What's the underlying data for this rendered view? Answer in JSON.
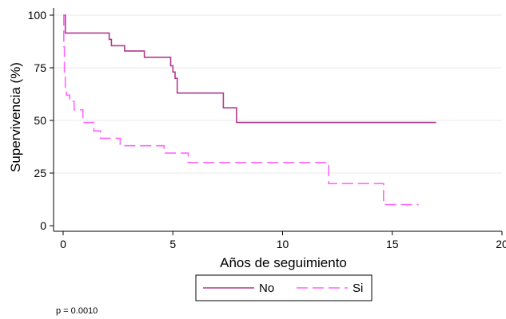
{
  "chart_data": {
    "type": "line",
    "step": true,
    "xlabel": "Años de seguimiento",
    "ylabel": "Supervivencia (%)",
    "xlim": [
      0,
      20
    ],
    "ylim": [
      0,
      100
    ],
    "xticks": [
      0,
      5,
      10,
      15,
      20
    ],
    "xtick_labels": [
      "0",
      "5",
      "10",
      "15",
      "20"
    ],
    "yticks": [
      0,
      25,
      50,
      75,
      100
    ],
    "ytick_labels": [
      "0",
      "25",
      "50",
      "75",
      "100"
    ],
    "grid": "horizontal",
    "legend": "bottom",
    "series": [
      {
        "name": "No",
        "color": "#b03a8c",
        "dash": "solid",
        "x": [
          0,
          0.1,
          2.1,
          2.2,
          2.8,
          3.7,
          4.9,
          5.0,
          5.1,
          5.2,
          7.3,
          7.9,
          17.0
        ],
        "y": [
          100,
          91.5,
          88.5,
          85.5,
          83,
          80,
          76,
          73,
          70,
          63,
          56,
          49,
          49
        ]
      },
      {
        "name": "Si",
        "color": "#ff66ff",
        "dash": "dashed",
        "x": [
          0,
          0.03,
          0.06,
          0.1,
          0.15,
          0.3,
          0.5,
          0.9,
          1.4,
          1.7,
          2.6,
          4.6,
          5.7,
          12.1,
          14.6,
          16.2
        ],
        "y": [
          100,
          85,
          73,
          65,
          62,
          59,
          55,
          49,
          45,
          41.5,
          38,
          34.5,
          30,
          20,
          10,
          10
        ]
      }
    ],
    "annotation": "p = 0.0010"
  }
}
